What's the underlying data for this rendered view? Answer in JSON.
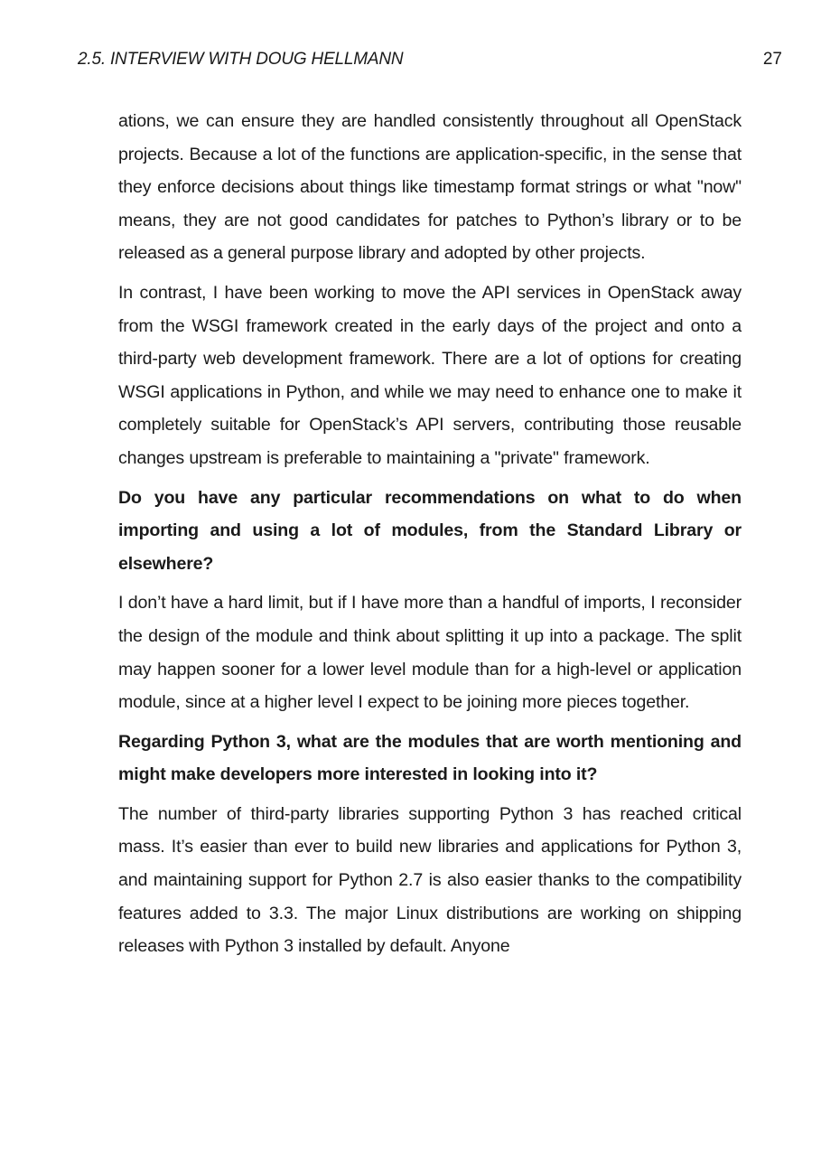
{
  "header": {
    "section_title": "2.5.  INTERVIEW WITH DOUG HELLMANN",
    "page_number": "27"
  },
  "paragraphs": [
    {
      "kind": "answer",
      "text": "ations, we can ensure they are handled consistently throughout all OpenStack projects.  Because a lot of the functions are application-specific, in the sense that they enforce decisions about things like timestamp format strings or what \"now\" means, they are not good candidates for patches to Python’s library or to be released as a general purpose library and adopted by other projects."
    },
    {
      "kind": "answer",
      "text": "In contrast, I have been working to move the API services in OpenStack away from the WSGI framework created in the early days of the project and onto a third-party web development framework.  There are a lot of options for creating WSGI applications in Python, and while we may need to enhance one to make it completely suitable for OpenStack’s API servers, contributing those reusable changes upstream is preferable to maintaining a \"private\" framework."
    },
    {
      "kind": "question",
      "text": "Do you have any particular recommendations on what to do when importing and using a lot of modules, from the Standard Library or elsewhere?"
    },
    {
      "kind": "answer",
      "text": "I don’t have a hard limit, but if I have more than a handful of imports, I reconsider the design of the module and think about splitting it up into a package.  The split may happen sooner for a lower level module than for a high-level or application module, since at a higher level I expect to be joining more pieces together."
    },
    {
      "kind": "question",
      "text": "Regarding Python 3, what are the modules that are worth mentioning and might make developers more interested in looking into it?"
    },
    {
      "kind": "answer",
      "text": "The number of third-party libraries supporting Python 3 has reached critical mass.  It’s easier than ever to build new libraries and applications for Python 3, and maintaining support for Python 2.7 is also easier thanks to the compatibility features added to 3.3. The major Linux distributions are working on shipping releases with Python 3 installed by default.  Anyone"
    }
  ]
}
